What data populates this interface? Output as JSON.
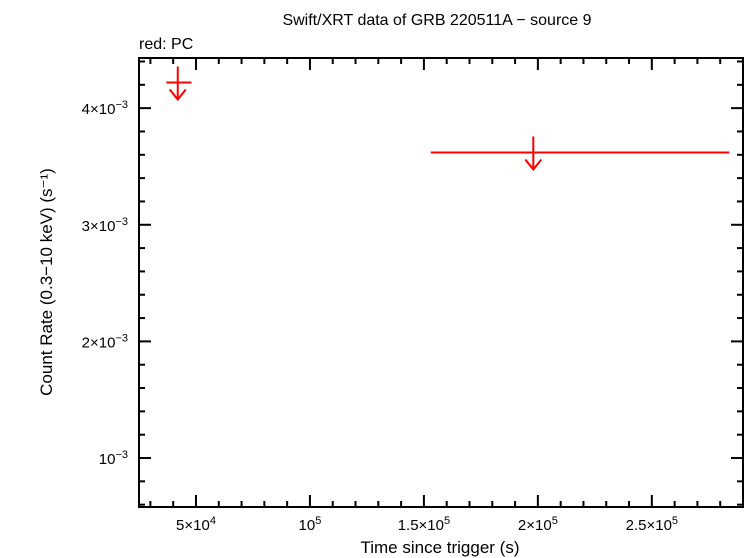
{
  "chart_data": {
    "type": "scatter",
    "title": "Swift/XRT data of GRB 220511A − source 9",
    "subtitle": "red: PC",
    "xlabel": "Time since trigger (s)",
    "ylabel": "Count Rate (0.3−10 keV) (s⁻¹)",
    "xlim": [
      25000,
      290000
    ],
    "ylim": [
      0.00058,
      0.00443
    ],
    "x_ticks": [
      {
        "value": 50000,
        "mantissa": "5×10",
        "exp": "4"
      },
      {
        "value": 100000,
        "mantissa": "10",
        "exp": "5"
      },
      {
        "value": 150000,
        "mantissa": "1.5×10",
        "exp": "5"
      },
      {
        "value": 200000,
        "mantissa": "2×10",
        "exp": "5"
      },
      {
        "value": 250000,
        "mantissa": "2.5×10",
        "exp": "5"
      }
    ],
    "y_ticks": [
      {
        "value": 0.001,
        "mantissa": "10",
        "exp": "−3"
      },
      {
        "value": 0.002,
        "mantissa": "2×10",
        "exp": "−3"
      },
      {
        "value": 0.003,
        "mantissa": "3×10",
        "exp": "−3"
      },
      {
        "value": 0.004,
        "mantissa": "4×10",
        "exp": "−3"
      }
    ],
    "series": [
      {
        "color": "#ff0000",
        "marker": "upper-limit",
        "points": [
          {
            "x": 42000,
            "x_lo": 37000,
            "x_hi": 48000,
            "y": 0.00422
          },
          {
            "x": 198000,
            "x_lo": 153000,
            "x_hi": 284000,
            "y": 0.00362
          }
        ]
      }
    ]
  }
}
